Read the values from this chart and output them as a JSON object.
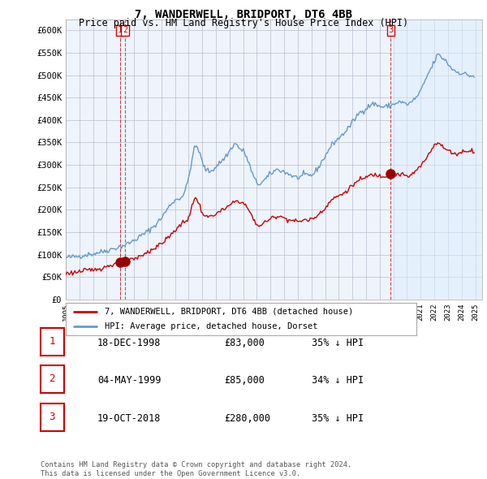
{
  "title": "7, WANDERWELL, BRIDPORT, DT6 4BB",
  "subtitle": "Price paid vs. HM Land Registry's House Price Index (HPI)",
  "ytick_values": [
    0,
    50000,
    100000,
    150000,
    200000,
    250000,
    300000,
    350000,
    400000,
    450000,
    500000,
    550000,
    600000
  ],
  "ylim": [
    0,
    625000
  ],
  "xlim_start": 1995.0,
  "xlim_end": 2025.5,
  "background_color": "#ffffff",
  "plot_bg_color": "#eef4fc",
  "grid_color": "#bbbbcc",
  "hpi_line_color": "#6699cc",
  "price_line_color": "#cc0000",
  "sale_marker_color": "#990000",
  "vline_color": "#cc0000",
  "highlight_bg": "#ddeeff",
  "legend_label_price": "7, WANDERWELL, BRIDPORT, DT6 4BB (detached house)",
  "legend_label_hpi": "HPI: Average price, detached house, Dorset",
  "transactions": [
    {
      "num": 1,
      "date_label": "18-DEC-1998",
      "date_x": 1998.96,
      "price": 83000,
      "pct": "35%",
      "direction": "↓"
    },
    {
      "num": 2,
      "date_label": "04-MAY-1999",
      "date_x": 1999.35,
      "price": 85000,
      "pct": "34%",
      "direction": "↓"
    },
    {
      "num": 3,
      "date_label": "19-OCT-2018",
      "date_x": 2018.8,
      "price": 280000,
      "pct": "35%",
      "direction": "↓"
    }
  ],
  "table_rows": [
    {
      "num": 1,
      "date": "18-DEC-1998",
      "price": "£83,000",
      "pct_hpi": "35% ↓ HPI"
    },
    {
      "num": 2,
      "date": "04-MAY-1999",
      "price": "£85,000",
      "pct_hpi": "34% ↓ HPI"
    },
    {
      "num": 3,
      "date": "19-OCT-2018",
      "price": "£280,000",
      "pct_hpi": "35% ↓ HPI"
    }
  ],
  "footer": "Contains HM Land Registry data © Crown copyright and database right 2024.\nThis data is licensed under the Open Government Licence v3.0."
}
